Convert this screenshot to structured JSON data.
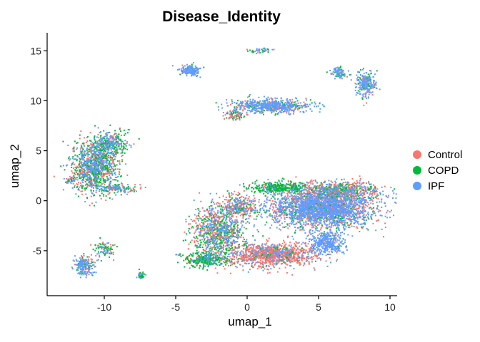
{
  "chart_data": {
    "type": "scatter",
    "title": "Disease_Identity",
    "xlabel": "umap_1",
    "ylabel": "umap_2",
    "xlim": [
      -14,
      10.5
    ],
    "ylim": [
      -9.5,
      16.8
    ],
    "xticks": [
      -10,
      -5,
      0,
      5,
      10
    ],
    "yticks": [
      -5,
      0,
      5,
      10,
      15
    ],
    "grid": false,
    "legend_position": "right",
    "series": [
      {
        "name": "Control",
        "color": "#F8766D"
      },
      {
        "name": "COPD",
        "color": "#00BA38"
      },
      {
        "name": "IPF",
        "color": "#619CFF"
      }
    ],
    "clusters": [
      {
        "x": 5.2,
        "y": -0.8,
        "sx": 2.6,
        "sy": 1.3,
        "n": 2600,
        "mix": [
          0.33,
          0.12,
          0.55
        ]
      },
      {
        "x": 1.8,
        "y": -5.4,
        "sx": 2.1,
        "sy": 0.8,
        "n": 1100,
        "mix": [
          0.78,
          0.05,
          0.17
        ]
      },
      {
        "x": 5.6,
        "y": -4.2,
        "sx": 0.9,
        "sy": 0.9,
        "n": 400,
        "mix": [
          0.1,
          0.05,
          0.85
        ]
      },
      {
        "x": 6.5,
        "y": 1.0,
        "sx": 2.0,
        "sy": 0.6,
        "n": 700,
        "mix": [
          0.55,
          0.2,
          0.25
        ]
      },
      {
        "x": 2.3,
        "y": 1.3,
        "sx": 1.4,
        "sy": 0.4,
        "n": 380,
        "mix": [
          0.1,
          0.8,
          0.1
        ]
      },
      {
        "x": -2.0,
        "y": -3.2,
        "sx": 1.3,
        "sy": 2.0,
        "n": 1000,
        "mix": [
          0.4,
          0.3,
          0.3
        ]
      },
      {
        "x": -3.0,
        "y": -5.9,
        "sx": 0.9,
        "sy": 0.5,
        "n": 300,
        "mix": [
          0.15,
          0.7,
          0.15
        ]
      },
      {
        "x": -0.6,
        "y": -0.6,
        "sx": 0.9,
        "sy": 0.8,
        "n": 300,
        "mix": [
          0.6,
          0.15,
          0.25
        ]
      },
      {
        "x": -10.7,
        "y": 3.4,
        "sx": 1.1,
        "sy": 1.8,
        "n": 1100,
        "mix": [
          0.34,
          0.36,
          0.3
        ]
      },
      {
        "x": -9.6,
        "y": 5.7,
        "sx": 0.9,
        "sy": 0.9,
        "n": 350,
        "mix": [
          0.25,
          0.45,
          0.3
        ]
      },
      {
        "x": -12.4,
        "y": 2.1,
        "sx": 0.25,
        "sy": 0.2,
        "n": 30,
        "mix": [
          0.3,
          0.3,
          0.4
        ]
      },
      {
        "x": -9.1,
        "y": 1.2,
        "sx": 1.0,
        "sy": 0.3,
        "n": 150,
        "mix": [
          0.3,
          0.4,
          0.3
        ]
      },
      {
        "x": -11.4,
        "y": -6.5,
        "sx": 0.5,
        "sy": 0.7,
        "n": 200,
        "mix": [
          0.15,
          0.25,
          0.6
        ]
      },
      {
        "x": -10.0,
        "y": -4.9,
        "sx": 0.6,
        "sy": 0.6,
        "n": 90,
        "mix": [
          0.2,
          0.55,
          0.25
        ]
      },
      {
        "x": -7.4,
        "y": -7.5,
        "sx": 0.2,
        "sy": 0.3,
        "n": 40,
        "mix": [
          0.2,
          0.5,
          0.3
        ]
      },
      {
        "x": 1.7,
        "y": 9.5,
        "sx": 1.9,
        "sy": 0.5,
        "n": 650,
        "mix": [
          0.2,
          0.15,
          0.65
        ]
      },
      {
        "x": -0.8,
        "y": 8.6,
        "sx": 0.5,
        "sy": 0.4,
        "n": 90,
        "mix": [
          0.6,
          0.3,
          0.1
        ]
      },
      {
        "x": -4.0,
        "y": 13.0,
        "sx": 0.5,
        "sy": 0.35,
        "n": 170,
        "mix": [
          0.1,
          0.2,
          0.7
        ]
      },
      {
        "x": 1.0,
        "y": 15.0,
        "sx": 0.6,
        "sy": 0.2,
        "n": 45,
        "mix": [
          0.3,
          0.3,
          0.4
        ]
      },
      {
        "x": 6.4,
        "y": 12.8,
        "sx": 0.4,
        "sy": 0.4,
        "n": 90,
        "mix": [
          0.1,
          0.2,
          0.7
        ]
      },
      {
        "x": 8.3,
        "y": 11.7,
        "sx": 0.5,
        "sy": 0.9,
        "n": 250,
        "mix": [
          0.15,
          0.25,
          0.6
        ]
      }
    ]
  }
}
